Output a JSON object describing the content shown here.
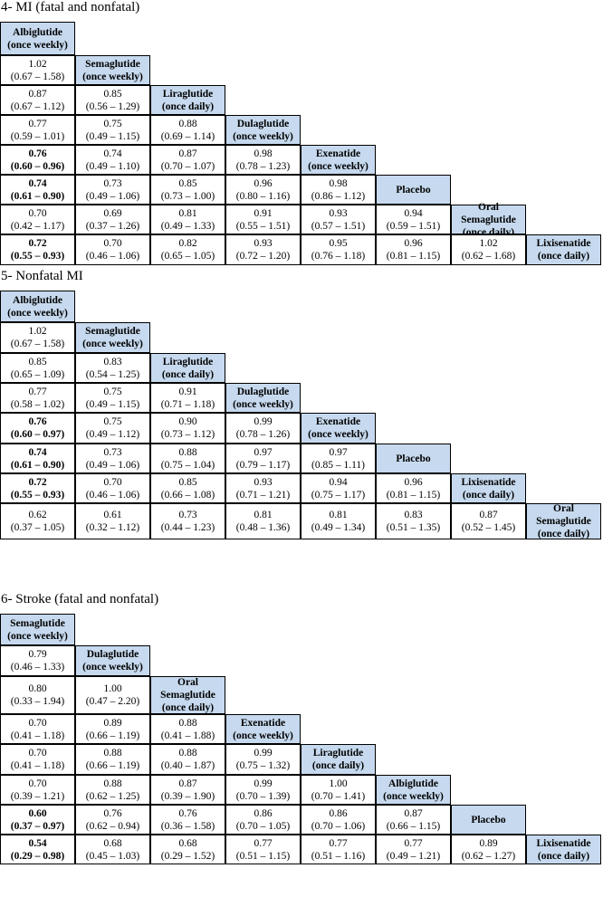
{
  "sections": [
    {
      "title": "4- MI (fatal and nonfatal)",
      "drugs": [
        [
          "Albiglutide",
          "(once weekly)"
        ],
        [
          "Semaglutide",
          "(once weekly)"
        ],
        [
          "Liraglutide",
          "(once daily)"
        ],
        [
          "Dulaglutide",
          "(once weekly)"
        ],
        [
          "Exenatide",
          "(once weekly)"
        ],
        [
          "Placebo"
        ],
        [
          "Oral",
          "Semaglutide",
          "(once daily)"
        ],
        [
          "Lixisenatide",
          "(once daily)"
        ]
      ],
      "rows": [
        [],
        [
          {
            "v": "1.02",
            "ci": "(0.67 – 1.58)"
          }
        ],
        [
          {
            "v": "0.87",
            "ci": "(0.67 – 1.12)"
          },
          {
            "v": "0.85",
            "ci": "(0.56 – 1.29)"
          }
        ],
        [
          {
            "v": "0.77",
            "ci": "(0.59 – 1.01)"
          },
          {
            "v": "0.75",
            "ci": "(0.49 – 1.15)"
          },
          {
            "v": "0.88",
            "ci": "(0.69 – 1.14)"
          }
        ],
        [
          {
            "v": "0.76",
            "ci": "(0.60 – 0.96)",
            "b": true
          },
          {
            "v": "0.74",
            "ci": "(0.49 – 1.10)"
          },
          {
            "v": "0.87",
            "ci": "(0.70 – 1.07)"
          },
          {
            "v": "0.98",
            "ci": "(0.78 – 1.23)"
          }
        ],
        [
          {
            "v": "0.74",
            "ci": "(0.61 – 0.90)",
            "b": true
          },
          {
            "v": "0.73",
            "ci": "(0.49 – 1.06)"
          },
          {
            "v": "0.85",
            "ci": "(0.73 – 1.00)"
          },
          {
            "v": "0.96",
            "ci": "(0.80 – 1.16)"
          },
          {
            "v": "0.98",
            "ci": "(0.86 – 1.12)"
          }
        ],
        [
          {
            "v": "0.70",
            "ci": "(0.42 – 1.17)"
          },
          {
            "v": "0.69",
            "ci": "(0.37 – 1.26)"
          },
          {
            "v": "0.81",
            "ci": "(0.49 – 1.33)"
          },
          {
            "v": "0.91",
            "ci": "(0.55 – 1.51)"
          },
          {
            "v": "0.93",
            "ci": "(0.57 – 1.51)"
          },
          {
            "v": "0.94",
            "ci": "(0.59 – 1.51)"
          }
        ],
        [
          {
            "v": "0.72",
            "ci": "(0.55 – 0.93)",
            "b": true
          },
          {
            "v": "0.70",
            "ci": "(0.46 – 1.06)"
          },
          {
            "v": "0.82",
            "ci": "(0.65 – 1.05)"
          },
          {
            "v": "0.93",
            "ci": "(0.72 – 1.20)"
          },
          {
            "v": "0.95",
            "ci": "(0.76 – 1.18)"
          },
          {
            "v": "0.96",
            "ci": "(0.81 – 1.15)"
          },
          {
            "v": "1.02",
            "ci": "(0.62 – 1.68)"
          }
        ]
      ]
    },
    {
      "title": "5- Nonfatal MI",
      "drugs": [
        [
          "Albiglutide",
          "(once weekly)"
        ],
        [
          "Semaglutide",
          "(once weekly)"
        ],
        [
          "Liraglutide",
          "(once daily)"
        ],
        [
          "Dulaglutide",
          "(once weekly)"
        ],
        [
          "Exenatide",
          "(once weekly)"
        ],
        [
          "Placebo"
        ],
        [
          "Lixisenatide",
          "(once daily)"
        ],
        [
          "Oral",
          "Semaglutide",
          "(once daily)"
        ]
      ],
      "rows": [
        [],
        [
          {
            "v": "1.02",
            "ci": "(0.67 – 1.58)"
          }
        ],
        [
          {
            "v": "0.85",
            "ci": "(0.65 – 1.09)"
          },
          {
            "v": "0.83",
            "ci": "(0.54 – 1.25)"
          }
        ],
        [
          {
            "v": "0.77",
            "ci": "(0.58 – 1.02)"
          },
          {
            "v": "0.75",
            "ci": "(0.49 – 1.15)"
          },
          {
            "v": "0.91",
            "ci": "(0.71 – 1.18)"
          }
        ],
        [
          {
            "v": "0.76",
            "ci": "(0.60 – 0.97)",
            "b": true
          },
          {
            "v": "0.75",
            "ci": "(0.49 – 1.12)"
          },
          {
            "v": "0.90",
            "ci": "(0.73 – 1.12)"
          },
          {
            "v": "0.99",
            "ci": "(0.78 – 1.26)"
          }
        ],
        [
          {
            "v": "0.74",
            "ci": "(0.61 – 0.90)",
            "b": true
          },
          {
            "v": "0.73",
            "ci": "(0.49 – 1.06)"
          },
          {
            "v": "0.88",
            "ci": "(0.75 – 1.04)"
          },
          {
            "v": "0.97",
            "ci": "(0.79 – 1.17)"
          },
          {
            "v": "0.97",
            "ci": "(0.85 – 1.11)"
          }
        ],
        [
          {
            "v": "0.72",
            "ci": "(0.55 – 0.93)",
            "b": true
          },
          {
            "v": "0.70",
            "ci": "(0.46 – 1.06)"
          },
          {
            "v": "0.85",
            "ci": "(0.66 – 1.08)"
          },
          {
            "v": "0.93",
            "ci": "(0.71 – 1.21)"
          },
          {
            "v": "0.94",
            "ci": "(0.75 – 1.17)"
          },
          {
            "v": "0.96",
            "ci": "(0.81 – 1.15)"
          }
        ],
        [
          {
            "v": "0.62",
            "ci": "(0.37 – 1.05)"
          },
          {
            "v": "0.61",
            "ci": "(0.32 – 1.12)"
          },
          {
            "v": "0.73",
            "ci": "(0.44 – 1.23)"
          },
          {
            "v": "0.81",
            "ci": "(0.48 – 1.36)"
          },
          {
            "v": "0.81",
            "ci": "(0.49 – 1.34)"
          },
          {
            "v": "0.83",
            "ci": "(0.51 – 1.35)"
          },
          {
            "v": "0.87",
            "ci": "(0.52 – 1.45)"
          }
        ]
      ]
    },
    {
      "title": "6- Stroke (fatal and nonfatal)",
      "drugs": [
        [
          "Semaglutide",
          "(once weekly)"
        ],
        [
          "Dulaglutide",
          "(once weekly)"
        ],
        [
          "Oral",
          "Semaglutide",
          "(once daily)"
        ],
        [
          "Exenatide",
          "(once weekly)"
        ],
        [
          "Liraglutide",
          "(once daily)"
        ],
        [
          "Albiglutide",
          "(once weekly)"
        ],
        [
          "Placebo"
        ],
        [
          "Lixisenatide",
          "(once daily)"
        ]
      ],
      "rows": [
        [],
        [
          {
            "v": "0.79",
            "ci": "(0.46 – 1.33)"
          }
        ],
        [
          {
            "v": "0.80",
            "ci": "(0.33 – 1.94)"
          },
          {
            "v": "1.00",
            "ci": "(0.47 – 2.20)"
          }
        ],
        [
          {
            "v": "0.70",
            "ci": "(0.41 – 1.18)"
          },
          {
            "v": "0.89",
            "ci": "(0.66 – 1.19)"
          },
          {
            "v": "0.88",
            "ci": "(0.41 – 1.88)"
          }
        ],
        [
          {
            "v": "0.70",
            "ci": "(0.41 – 1.18)"
          },
          {
            "v": "0.88",
            "ci": "(0.66 – 1.19)"
          },
          {
            "v": "0.88",
            "ci": "(0.40 – 1.87)"
          },
          {
            "v": "0.99",
            "ci": "(0.75 – 1.32)"
          }
        ],
        [
          {
            "v": "0.70",
            "ci": "(0.39 – 1.21)"
          },
          {
            "v": "0.88",
            "ci": "(0.62 – 1.25)"
          },
          {
            "v": "0.87",
            "ci": "(0.39 – 1.90)"
          },
          {
            "v": "0.99",
            "ci": "(0.70 – 1.39)"
          },
          {
            "v": "1.00",
            "ci": "(0.70 – 1.41)"
          }
        ],
        [
          {
            "v": "0.60",
            "ci": "(0.37 – 0.97)",
            "b": true
          },
          {
            "v": "0.76",
            "ci": "(0.62 – 0.94)"
          },
          {
            "v": "0.76",
            "ci": "(0.36 – 1.58)"
          },
          {
            "v": "0.86",
            "ci": "(0.70 – 1.05)"
          },
          {
            "v": "0.86",
            "ci": "(0.70 – 1.06)"
          },
          {
            "v": "0.87",
            "ci": "(0.66 – 1.15)"
          }
        ],
        [
          {
            "v": "0.54",
            "ci": "(0.29 – 0.98)",
            "b": true
          },
          {
            "v": "0.68",
            "ci": "(0.45 – 1.03)"
          },
          {
            "v": "0.68",
            "ci": "(0.29 – 1.52)"
          },
          {
            "v": "0.77",
            "ci": "(0.51 – 1.15)"
          },
          {
            "v": "0.77",
            "ci": "(0.51 – 1.16)"
          },
          {
            "v": "0.77",
            "ci": "(0.49 – 1.21)"
          },
          {
            "v": "0.89",
            "ci": "(0.62 – 1.27)"
          }
        ]
      ]
    }
  ],
  "colors": {
    "header_fill": "#c6d9ee",
    "border": "#000000"
  }
}
